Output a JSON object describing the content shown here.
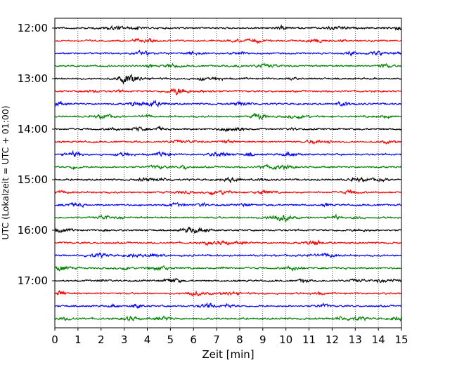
{
  "chart_data": {
    "type": "line",
    "title": "",
    "xlabel": "Zeit  [min]",
    "ylabel": "UTC (Lokalzeit = UTC + 01:00)",
    "xlim": [
      0,
      15
    ],
    "x_ticks": [
      "0",
      "1",
      "2",
      "3",
      "4",
      "5",
      "6",
      "7",
      "8",
      "9",
      "10",
      "11",
      "12",
      "13",
      "14",
      "15"
    ],
    "y_ticks": [
      "12:00",
      "13:00",
      "14:00",
      "15:00",
      "16:00",
      "17:00"
    ],
    "grid": "vertical dotted",
    "trace_interval_minutes": 15,
    "start_time": "12:00",
    "colors": [
      "#000000",
      "#ff0000",
      "#0000ff",
      "#008000"
    ],
    "series": [
      {
        "start": "12:00",
        "color": "#000000"
      },
      {
        "start": "12:15",
        "color": "#ff0000"
      },
      {
        "start": "12:30",
        "color": "#0000ff"
      },
      {
        "start": "12:45",
        "color": "#008000"
      },
      {
        "start": "13:00",
        "color": "#000000"
      },
      {
        "start": "13:15",
        "color": "#ff0000"
      },
      {
        "start": "13:30",
        "color": "#0000ff"
      },
      {
        "start": "13:45",
        "color": "#008000"
      },
      {
        "start": "14:00",
        "color": "#000000"
      },
      {
        "start": "14:15",
        "color": "#ff0000"
      },
      {
        "start": "14:30",
        "color": "#0000ff"
      },
      {
        "start": "14:45",
        "color": "#008000"
      },
      {
        "start": "15:00",
        "color": "#000000"
      },
      {
        "start": "15:15",
        "color": "#ff0000"
      },
      {
        "start": "15:30",
        "color": "#0000ff"
      },
      {
        "start": "15:45",
        "color": "#008000"
      },
      {
        "start": "16:00",
        "color": "#000000"
      },
      {
        "start": "16:15",
        "color": "#ff0000"
      },
      {
        "start": "16:30",
        "color": "#0000ff"
      },
      {
        "start": "16:45",
        "color": "#008000"
      },
      {
        "start": "17:00",
        "color": "#000000"
      },
      {
        "start": "17:15",
        "color": "#ff0000"
      },
      {
        "start": "17:30",
        "color": "#0000ff"
      },
      {
        "start": "17:45",
        "color": "#008000"
      }
    ]
  }
}
